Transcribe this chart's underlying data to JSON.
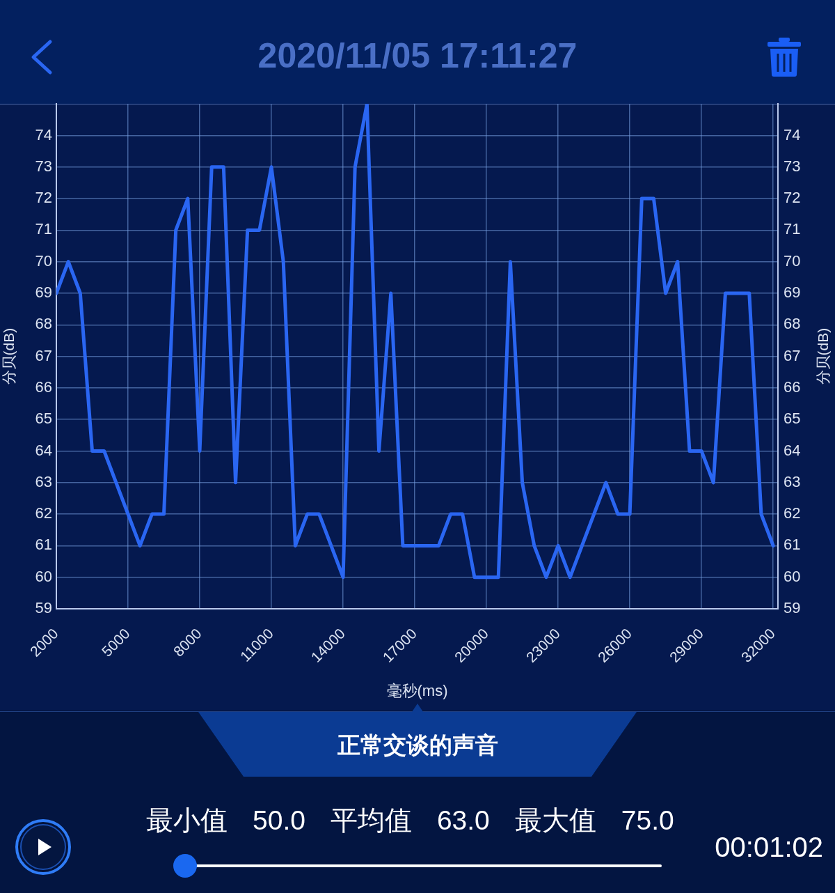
{
  "chart_data": {
    "type": "line",
    "title": "2020/11/05 17:11:27",
    "xlabel": "毫秒(ms)",
    "ylabel": "分贝(dB)",
    "y2label": "分贝(dB)",
    "x": [
      2000,
      2500,
      3000,
      3500,
      4000,
      4500,
      5000,
      5500,
      6000,
      6500,
      7000,
      7500,
      8000,
      8500,
      9000,
      9500,
      10000,
      10500,
      11000,
      11500,
      12000,
      12500,
      13000,
      13500,
      14000,
      14500,
      15000,
      15500,
      16000,
      16500,
      17000,
      17500,
      18000,
      18500,
      19000,
      19500,
      20000,
      20500,
      21000,
      21500,
      22000,
      22500,
      23000,
      23500,
      24000,
      24500,
      25000,
      25500,
      26000,
      26500,
      27000,
      27500,
      28000,
      28500,
      29000,
      29500,
      30000,
      30500,
      31000,
      31500,
      32000
    ],
    "values": [
      69,
      70,
      69,
      64,
      64,
      63,
      62,
      61,
      62,
      62,
      71,
      72,
      64,
      73,
      73,
      63,
      71,
      71,
      73,
      70,
      61,
      62,
      62,
      61,
      60,
      73,
      75,
      64,
      69,
      61,
      61,
      61,
      61,
      62,
      62,
      60,
      60,
      60,
      70,
      63,
      61,
      60,
      61,
      60,
      61,
      62,
      63,
      62,
      62,
      72,
      72,
      69,
      70,
      64,
      64,
      63,
      69,
      69,
      69,
      62,
      61
    ],
    "color": "#2a66f2",
    "xlim": [
      2000,
      32200
    ],
    "xticks": [
      2000,
      5000,
      8000,
      11000,
      14000,
      17000,
      20000,
      23000,
      26000,
      29000,
      32000
    ],
    "ylim": [
      59,
      75
    ],
    "yticks": [
      59,
      60,
      61,
      62,
      63,
      64,
      65,
      66,
      67,
      68,
      69,
      70,
      71,
      72,
      73,
      74
    ],
    "y2lim": [
      59,
      75
    ],
    "y2ticks": [
      59,
      60,
      61,
      62,
      63,
      64,
      65,
      66,
      67,
      68,
      69,
      70,
      71,
      72,
      73,
      74
    ],
    "grid": true,
    "legend": false,
    "annotations": [
      "正常交谈的声音",
      "最小值",
      "50.0",
      "平均值",
      "63.0",
      "最大值",
      "75.0",
      "00:01:02"
    ]
  }
}
